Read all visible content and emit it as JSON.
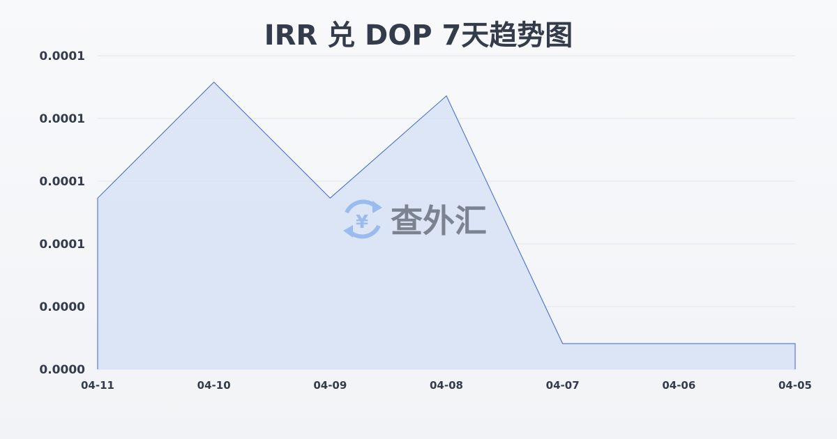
{
  "chart_data": {
    "type": "area",
    "title": "IRR 兑 DOP 7天趋势图",
    "xlabel": "",
    "ylabel": "",
    "categories": [
      "04-11",
      "04-10",
      "04-09",
      "04-08",
      "04-07",
      "04-06",
      "04-05"
    ],
    "values": [
      5.73e-05,
      7.58e-05,
      5.73e-05,
      7.36e-05,
      3.41e-05,
      3.41e-05,
      3.41e-05
    ],
    "ylim": [
      3e-05,
      8e-05
    ],
    "y_ticks": [
      3e-05,
      4e-05,
      5e-05,
      6e-05,
      7e-05,
      8e-05
    ],
    "y_tick_labels": [
      "0.0000",
      "0.0000",
      "0.0001",
      "0.0001",
      "0.0001",
      "0.0001"
    ],
    "grid": true,
    "line_color": "#3b63c9",
    "fill_color": "#d6e1f5"
  },
  "watermark": {
    "text": "查外汇",
    "icon": "yen-exchange-icon",
    "icon_color": "#8fb4ec",
    "text_color": "#6b7280"
  }
}
